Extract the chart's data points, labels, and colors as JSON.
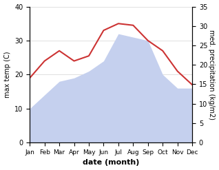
{
  "months": [
    "Jan",
    "Feb",
    "Mar",
    "Apr",
    "May",
    "Jun",
    "Jul",
    "Aug",
    "Sep",
    "Oct",
    "Nov",
    "Dec"
  ],
  "temperature": [
    19,
    24,
    27,
    24,
    25.5,
    33,
    35,
    34.5,
    30,
    27,
    21,
    17
  ],
  "precipitation": [
    10,
    14,
    18,
    19,
    21,
    24,
    32,
    31,
    30,
    20,
    16,
    16
  ],
  "temp_color": "#cc3333",
  "precip_color": "#c5d0ee",
  "background_color": "#ffffff",
  "ylabel_left": "max temp (C)",
  "ylabel_right": "med. precipitation (kg/m2)",
  "xlabel": "date (month)",
  "ylim_left": [
    0,
    40
  ],
  "ylim_right": [
    0,
    35
  ],
  "yticks_left": [
    0,
    10,
    20,
    30,
    40
  ],
  "yticks_right": [
    0,
    5,
    10,
    15,
    20,
    25,
    30,
    35
  ]
}
